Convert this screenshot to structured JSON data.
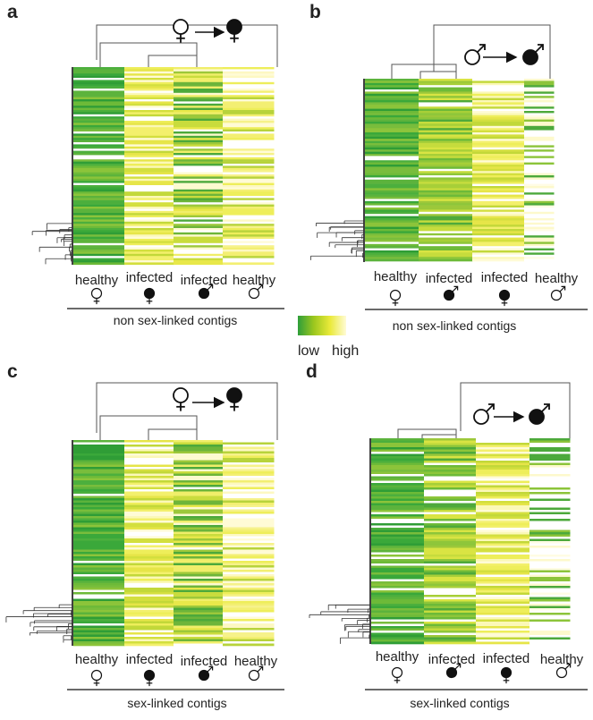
{
  "panels": [
    {
      "id": "a",
      "label": "a",
      "caption": "non sex-linked contigs",
      "columns": [
        "healthy",
        "infected",
        "infected",
        "healthy"
      ],
      "column_symbols": [
        "female-open",
        "female-filled",
        "male-filled",
        "male-open"
      ],
      "transition": {
        "from": "female-open",
        "to": "female-filled"
      },
      "column_tone": [
        "green-dominant",
        "yellow-dominant",
        "mixed",
        "white-yellow"
      ]
    },
    {
      "id": "b",
      "label": "b",
      "caption": "non sex-linked contigs",
      "columns": [
        "healthy",
        "infected",
        "infected",
        "healthy"
      ],
      "column_symbols": [
        "female-open",
        "male-filled",
        "female-filled",
        "male-open"
      ],
      "transition": {
        "from": "male-open",
        "to": "male-filled"
      },
      "column_tone": [
        "green-dominant",
        "green-yellow",
        "yellow-dominant",
        "white-dominant"
      ]
    },
    {
      "id": "c",
      "label": "c",
      "caption": "sex-linked contigs",
      "columns": [
        "healthy",
        "infected",
        "infected",
        "healthy"
      ],
      "column_symbols": [
        "female-open",
        "female-filled",
        "male-filled",
        "male-open"
      ],
      "transition": {
        "from": "female-open",
        "to": "female-filled"
      },
      "column_tone": [
        "green-dominant",
        "yellow-dominant",
        "mixed",
        "white-yellow"
      ]
    },
    {
      "id": "d",
      "label": "d",
      "caption": "sex-linked contigs",
      "columns": [
        "healthy",
        "infected",
        "infected",
        "healthy"
      ],
      "column_symbols": [
        "female-open",
        "male-filled",
        "female-filled",
        "male-open"
      ],
      "transition": {
        "from": "male-open",
        "to": "male-filled"
      },
      "column_tone": [
        "green-dominant",
        "green-yellow",
        "yellow-dominant",
        "white-dominant"
      ]
    }
  ],
  "legend": {
    "low": "low",
    "high": "high",
    "colors": [
      "#2e9e3a",
      "#9dc71e",
      "#eaea3a",
      "#fffbd6"
    ]
  }
}
